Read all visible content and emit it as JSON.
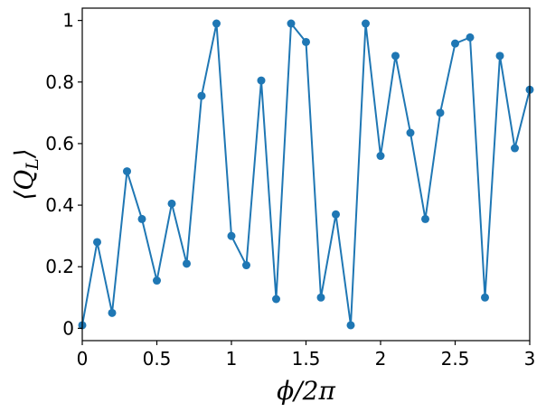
{
  "chart_data": {
    "type": "line",
    "title": "",
    "xlabel": "ϕ/2π",
    "ylabel": "⟨Q_L⟩",
    "xlim": [
      0,
      3
    ],
    "ylim": [
      -0.04,
      1.04
    ],
    "grid": false,
    "legend": "none",
    "x_ticks": [
      {
        "value": 0,
        "label": "0"
      },
      {
        "value": 0.5,
        "label": "0.5"
      },
      {
        "value": 1,
        "label": "1"
      },
      {
        "value": 1.5,
        "label": "1.5"
      },
      {
        "value": 2,
        "label": "2"
      },
      {
        "value": 2.5,
        "label": "2.5"
      },
      {
        "value": 3,
        "label": "3"
      }
    ],
    "y_ticks": [
      {
        "value": 0,
        "label": "0"
      },
      {
        "value": 0.2,
        "label": "0.2"
      },
      {
        "value": 0.4,
        "label": "0.4"
      },
      {
        "value": 0.6,
        "label": "0.6"
      },
      {
        "value": 0.8,
        "label": "0.8"
      },
      {
        "value": 1,
        "label": "1"
      }
    ],
    "series": [
      {
        "name": "Q_L",
        "color": "#1f77b4",
        "marker": "circle",
        "x": [
          0,
          0.1,
          0.2,
          0.3,
          0.4,
          0.5,
          0.6,
          0.7,
          0.8,
          0.9,
          1.0,
          1.1,
          1.2,
          1.3,
          1.4,
          1.5,
          1.6,
          1.7,
          1.8,
          1.9,
          2.0,
          2.1,
          2.2,
          2.3,
          2.4,
          2.5,
          2.6,
          2.7,
          2.8,
          2.9,
          3.0
        ],
        "y": [
          0.01,
          0.28,
          0.05,
          0.51,
          0.355,
          0.155,
          0.405,
          0.21,
          0.755,
          0.99,
          0.3,
          0.205,
          0.805,
          0.095,
          0.99,
          0.93,
          0.1,
          0.37,
          0.01,
          0.99,
          0.56,
          0.885,
          0.635,
          0.355,
          0.7,
          0.925,
          0.945,
          0.1,
          0.885,
          0.585,
          0.775
        ]
      }
    ]
  }
}
